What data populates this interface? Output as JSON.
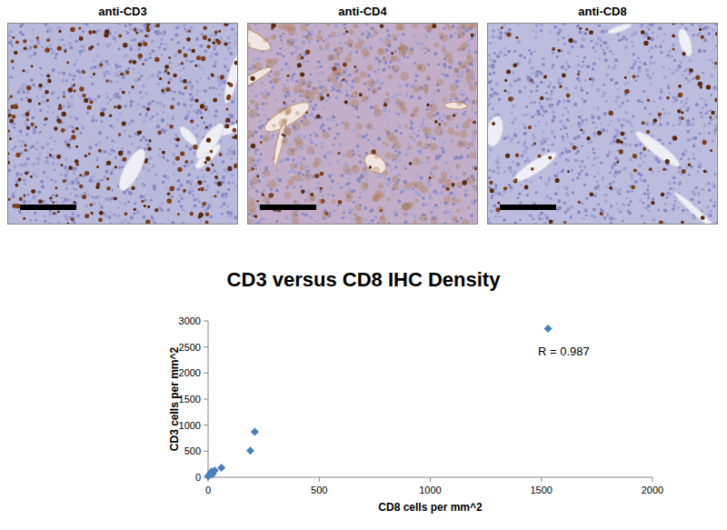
{
  "panels": [
    {
      "title": "anti-CD3"
    },
    {
      "title": "anti-CD4"
    },
    {
      "title": "anti-CD8"
    }
  ],
  "chart_data": {
    "type": "scatter",
    "title": "CD3 versus CD8 IHC Density",
    "x_label": "CD8 cells per mm^2",
    "y_label": "CD3 cells per mm^2",
    "annotations": [
      "R = 0.987"
    ],
    "x": [
      1530,
      210,
      190,
      60,
      30,
      15,
      10,
      20,
      5,
      0
    ],
    "values": [
      2850,
      870,
      510,
      185,
      130,
      110,
      70,
      60,
      40,
      20
    ],
    "color": "#4a7ebb",
    "marker": "diamond",
    "xlim": [
      0,
      2000
    ],
    "xticks": [
      0,
      500,
      1000,
      1500,
      2000
    ],
    "ylim": [
      0,
      3000
    ],
    "yticks": [
      0,
      500,
      1000,
      1500,
      2000,
      2500,
      3000
    ],
    "grid": false
  }
}
